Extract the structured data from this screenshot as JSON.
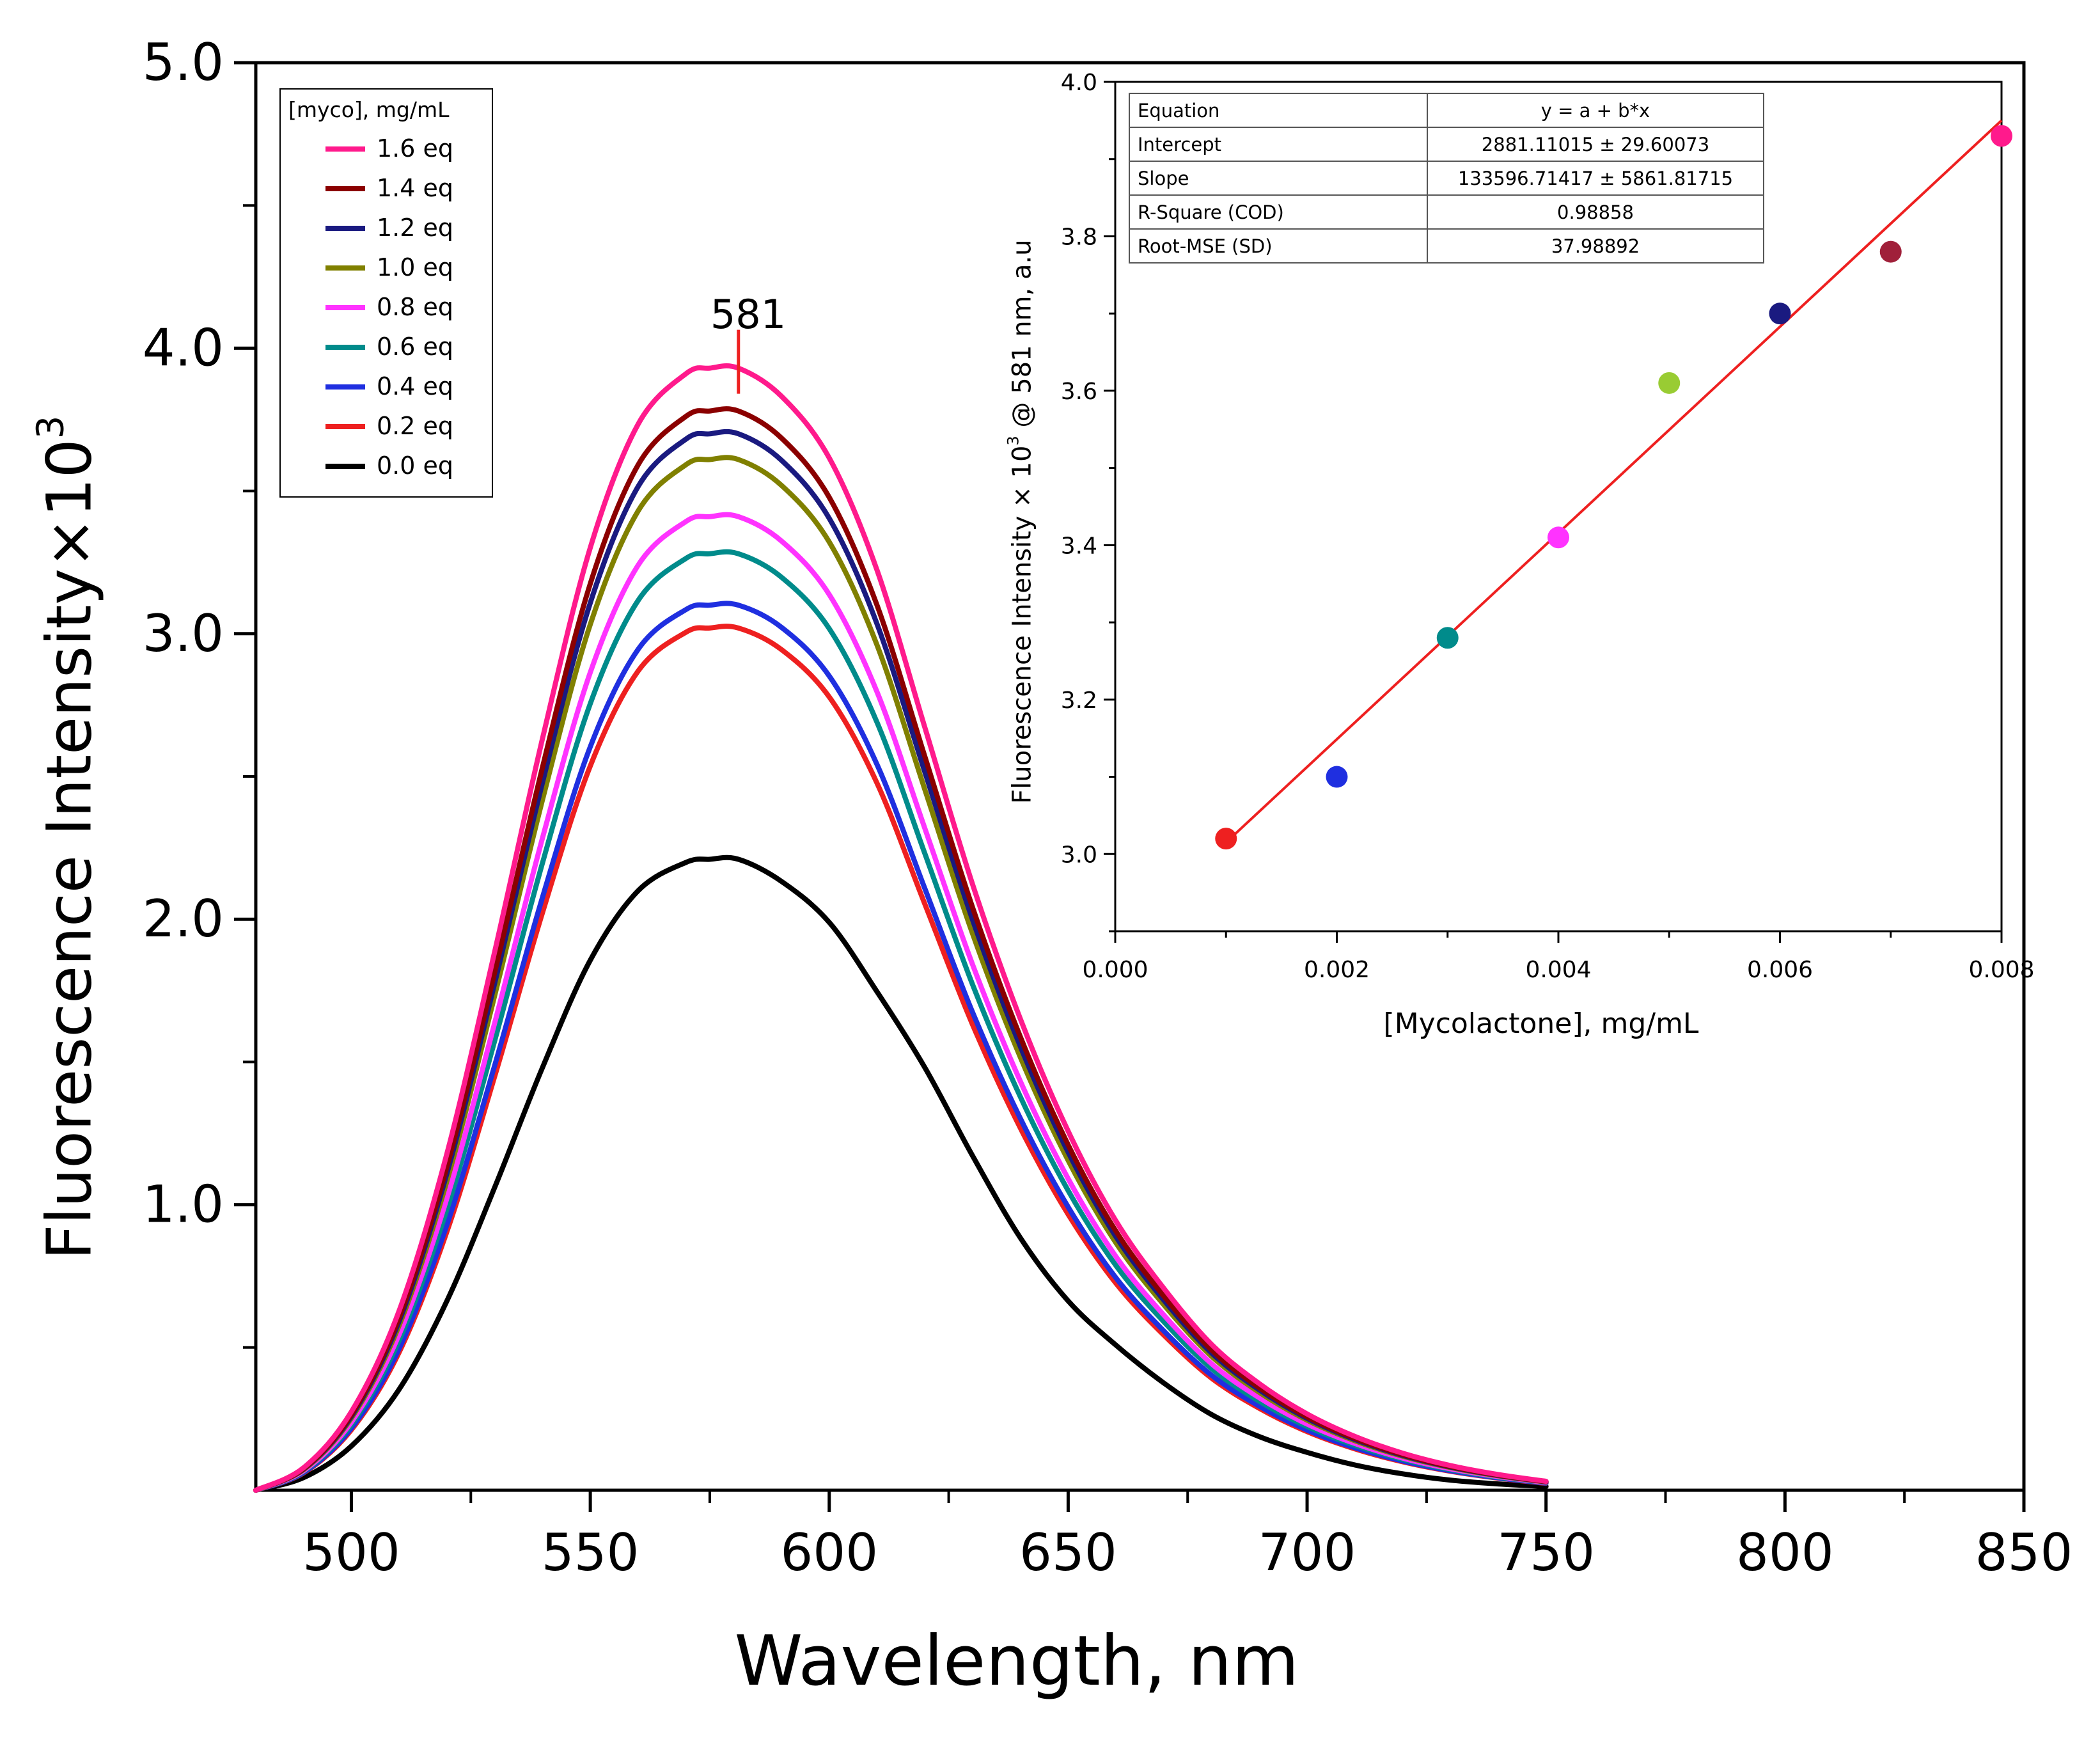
{
  "chart_data": [
    {
      "type": "line",
      "xlabel": "Wavelength, nm",
      "ylabel": "Fluorescence Intensity×10",
      "ylabel_exponent": "3",
      "xlim": [
        480,
        850
      ],
      "ylim": [
        0,
        5
      ],
      "x_ticks": [
        500,
        550,
        600,
        650,
        700,
        750,
        800,
        850
      ],
      "y_ticks": [
        "1.0",
        "2.0",
        "3.0",
        "4.0",
        "5.0"
      ],
      "grid": false,
      "annotation": {
        "text": "581",
        "x": 581,
        "y": 3.93
      },
      "legend": {
        "title": "[myco], mg/mL",
        "placement": "top-left"
      },
      "profile_x": [
        480,
        490,
        500,
        510,
        520,
        530,
        540,
        550,
        560,
        570,
        575,
        581,
        590,
        600,
        610,
        620,
        630,
        640,
        650,
        660,
        670,
        680,
        690,
        700,
        710,
        720,
        730,
        740,
        750
      ],
      "series": [
        {
          "name": "1.6 eq",
          "color": "#ff1a8c",
          "peak": 3.93
        },
        {
          "name": "1.4 eq",
          "color": "#8b0000",
          "peak": 3.78
        },
        {
          "name": "1.2 eq",
          "color": "#1a1a80",
          "peak": 3.7
        },
        {
          "name": "1.0 eq",
          "color": "#808000",
          "peak": 3.61
        },
        {
          "name": "0.8 eq",
          "color": "#ff33ff",
          "peak": 3.41
        },
        {
          "name": "0.6 eq",
          "color": "#008b8b",
          "peak": 3.28
        },
        {
          "name": "0.4 eq",
          "color": "#1f2fe0",
          "peak": 3.1
        },
        {
          "name": "0.2 eq",
          "color": "#ee2020",
          "peak": 3.02
        },
        {
          "name": "0.0 eq",
          "color": "#000000",
          "peak": 2.21
        }
      ],
      "profile": [
        0.0,
        0.02,
        0.07,
        0.16,
        0.3,
        0.48,
        0.67,
        0.84,
        0.95,
        0.995,
        1.0,
        1.0,
        0.975,
        0.92,
        0.82,
        0.68,
        0.54,
        0.42,
        0.32,
        0.24,
        0.18,
        0.13,
        0.095,
        0.068,
        0.048,
        0.033,
        0.022,
        0.014,
        0.008
      ],
      "black_profile": [
        0.0,
        0.02,
        0.07,
        0.16,
        0.3,
        0.48,
        0.67,
        0.84,
        0.95,
        0.995,
        1.0,
        1.0,
        0.965,
        0.9,
        0.79,
        0.67,
        0.53,
        0.4,
        0.3,
        0.23,
        0.17,
        0.12,
        0.085,
        0.06,
        0.04,
        0.026,
        0.016,
        0.01,
        0.006
      ]
    },
    {
      "type": "scatter",
      "xlabel": "[Mycolactone], mg/mL",
      "ylabel": "Fluorescence Intensity × 10",
      "ylabel_exponent": "3",
      "ylabel_suffix": " @ 581 nm, a.u",
      "xlim": [
        0,
        0.008
      ],
      "ylim": [
        2.9,
        4.0
      ],
      "x_ticks": [
        "0.000",
        "0.002",
        "0.004",
        "0.006",
        "0.008"
      ],
      "y_ticks": [
        "3.0",
        "3.2",
        "3.4",
        "3.6",
        "3.8",
        "4.0"
      ],
      "grid": false,
      "points": [
        {
          "x": 0.001,
          "y": 3.02,
          "color": "#ee2020"
        },
        {
          "x": 0.002,
          "y": 3.1,
          "color": "#1f2fe0"
        },
        {
          "x": 0.003,
          "y": 3.28,
          "color": "#008b8b"
        },
        {
          "x": 0.004,
          "y": 3.41,
          "color": "#ff33ff"
        },
        {
          "x": 0.005,
          "y": 3.61,
          "color": "#99cc33"
        },
        {
          "x": 0.006,
          "y": 3.7,
          "color": "#1a1a80"
        },
        {
          "x": 0.007,
          "y": 3.78,
          "color": "#a0203a"
        },
        {
          "x": 0.008,
          "y": 3.93,
          "color": "#ff1a8c"
        }
      ],
      "fit_line": {
        "x": [
          0.001,
          0.008
        ],
        "y": [
          3.015,
          3.95
        ],
        "color": "#ee2020"
      },
      "fit_table": [
        {
          "key": "Equation",
          "value": "y = a + b*x"
        },
        {
          "key": "Intercept",
          "value": "2881.11015 ± 29.60073"
        },
        {
          "key": "Slope",
          "value": "133596.71417 ± 5861.81715"
        },
        {
          "key": "R-Square (COD)",
          "value": "0.98858"
        },
        {
          "key": "Root-MSE (SD)",
          "value": "37.98892"
        }
      ]
    }
  ]
}
